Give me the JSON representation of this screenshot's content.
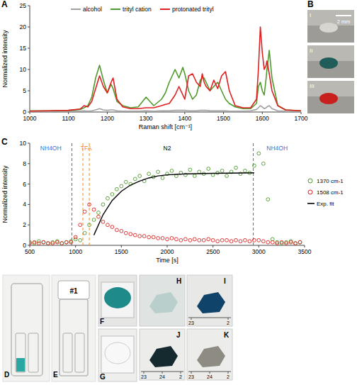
{
  "chart_data": [
    {
      "panel_label": "A",
      "type": "line",
      "x_label": "Raman shift [cm⁻¹]",
      "y_label": "Normalized intensity",
      "x": [
        1000,
        1050,
        1100,
        1130,
        1140,
        1150,
        1160,
        1170,
        1180,
        1190,
        1200,
        1210,
        1215,
        1225,
        1240,
        1260,
        1280,
        1300,
        1320,
        1340,
        1350,
        1360,
        1375,
        1385,
        1395,
        1400,
        1410,
        1420,
        1430,
        1440,
        1445,
        1450,
        1455,
        1465,
        1475,
        1485,
        1495,
        1505,
        1515,
        1530,
        1550,
        1570,
        1585,
        1590,
        1595,
        1600,
        1605,
        1610,
        1612,
        1618,
        1625,
        1640,
        1660,
        1700
      ],
      "series": [
        {
          "name": "alcohol",
          "color": "#a0a0a0",
          "values": [
            0.1,
            0.1,
            0.2,
            0.2,
            0.3,
            0.2,
            0.3,
            0.5,
            0.8,
            0.5,
            0.4,
            0.5,
            0.5,
            0.3,
            0.2,
            0.2,
            0.2,
            0.3,
            0.2,
            0.3,
            0.3,
            0.3,
            0.4,
            0.4,
            0.4,
            0.4,
            0.3,
            0.3,
            0.3,
            0.4,
            0.4,
            0.4,
            0.4,
            0.3,
            0.3,
            0.3,
            0.3,
            0.3,
            0.2,
            0.2,
            0.2,
            0.3,
            0.6,
            1.0,
            1.5,
            1.2,
            0.8,
            1.0,
            1.2,
            1.5,
            0.8,
            0.3,
            0.2,
            0.1
          ]
        },
        {
          "name": "trityl cation",
          "color": "#4f9a2c",
          "values": [
            0.3,
            0.3,
            0.4,
            0.6,
            1.0,
            1.5,
            3.5,
            8,
            11,
            7.5,
            4.5,
            6.5,
            5.5,
            2.5,
            1.5,
            1.0,
            1.2,
            3.5,
            1.5,
            3,
            4.5,
            7,
            10,
            8,
            10.5,
            9,
            5,
            3,
            4,
            7.5,
            8,
            8,
            7,
            5,
            6,
            7,
            5,
            3,
            2,
            1.2,
            0.8,
            0.8,
            2,
            6,
            7,
            5,
            4,
            8,
            10,
            14.5,
            8,
            1.5,
            0.5,
            0.3
          ]
        },
        {
          "name": "protonated trityl",
          "color": "#e02020",
          "values": [
            0.2,
            0.3,
            0.4,
            0.7,
            1.5,
            1.2,
            2.5,
            5.5,
            8.5,
            6,
            4.5,
            7,
            8,
            3,
            1.2,
            0.8,
            0.8,
            1.0,
            1.0,
            1.5,
            1.8,
            2,
            4,
            6,
            4,
            3,
            8.5,
            9,
            7,
            6,
            9,
            7,
            6,
            5,
            7.5,
            5.5,
            8.5,
            9.5,
            5,
            1.5,
            1.0,
            1.0,
            3,
            10,
            20,
            14,
            10,
            11,
            12,
            9,
            5,
            1.5,
            0.5,
            0.3
          ]
        }
      ],
      "xlim": [
        1000,
        1700
      ],
      "ylim": [
        0,
        25
      ],
      "xticks": [
        1000,
        1100,
        1200,
        1300,
        1400,
        1500,
        1600,
        1700
      ],
      "yticks": [
        0,
        5,
        10,
        15,
        20,
        25
      ],
      "legend": "top",
      "grid": false
    },
    {
      "panel_label": "C",
      "type": "scatter",
      "x_label": "Time [s]",
      "y_label": "Normalized intensity",
      "series": [
        {
          "name": "1370 cm-1",
          "color": "#4f9a2c",
          "marker": "circle",
          "x": [
            500,
            550,
            600,
            650,
            700,
            750,
            800,
            850,
            900,
            950,
            1000,
            1050,
            1100,
            1150,
            1200,
            1250,
            1300,
            1350,
            1400,
            1450,
            1500,
            1550,
            1600,
            1650,
            1700,
            1750,
            1800,
            1850,
            1900,
            1950,
            2000,
            2050,
            2100,
            2150,
            2200,
            2250,
            2300,
            2350,
            2400,
            2450,
            2500,
            2550,
            2600,
            2650,
            2700,
            2750,
            2800,
            2850,
            2900,
            2950,
            3000,
            3050,
            3100,
            3150,
            3200,
            3250,
            3300,
            3350,
            3400,
            3450
          ],
          "values": [
            0.3,
            0.2,
            0.4,
            0.3,
            0.2,
            0.3,
            0.4,
            0.2,
            0.3,
            0.4,
            0.6,
            0.5,
            1.2,
            2.0,
            2.5,
            3.2,
            4.0,
            4.6,
            5.0,
            5.5,
            5.8,
            6.2,
            6.0,
            6.5,
            6.8,
            6.3,
            7.0,
            6.7,
            7.2,
            6.6,
            7.0,
            7.3,
            6.8,
            7.1,
            6.9,
            7.4,
            6.8,
            7.2,
            7.0,
            7.5,
            6.9,
            7.1,
            7.3,
            6.8,
            7.2,
            7.6,
            7.0,
            7.3,
            7.1,
            7.8,
            9.0,
            8.0,
            4.5,
            0.6,
            0.3,
            0.2,
            0.3,
            0.4,
            0.2,
            0.3
          ]
        },
        {
          "name": "1508 cm-1",
          "color": "#e02020",
          "marker": "circle",
          "x": [
            500,
            550,
            600,
            650,
            700,
            750,
            800,
            850,
            900,
            950,
            1000,
            1050,
            1100,
            1150,
            1200,
            1250,
            1300,
            1350,
            1400,
            1450,
            1500,
            1550,
            1600,
            1650,
            1700,
            1750,
            1800,
            1850,
            1900,
            1950,
            2000,
            2050,
            2100,
            2150,
            2200,
            2250,
            2300,
            2350,
            2400,
            2450,
            2500,
            2550,
            2600,
            2650,
            2700,
            2750,
            2800,
            2850,
            2900,
            2950,
            3000,
            3050,
            3100,
            3150,
            3200,
            3250,
            3300,
            3350,
            3400,
            3450
          ],
          "values": [
            0.2,
            0.3,
            0.2,
            0.3,
            0.2,
            0.2,
            0.3,
            0.2,
            0.3,
            0.3,
            0.8,
            2.0,
            3.3,
            4.0,
            3.5,
            2.8,
            2.3,
            2.0,
            1.8,
            1.5,
            1.4,
            1.2,
            1.1,
            1.0,
            0.9,
            0.9,
            0.8,
            0.8,
            0.7,
            0.7,
            0.6,
            0.7,
            0.6,
            0.5,
            0.6,
            0.5,
            0.6,
            0.5,
            0.5,
            0.6,
            0.5,
            0.4,
            0.5,
            0.5,
            0.4,
            0.5,
            0.4,
            0.5,
            0.4,
            0.5,
            0.5,
            0.4,
            0.3,
            0.3,
            0.2,
            0.3,
            0.2,
            0.3,
            0.2,
            0.3
          ]
        },
        {
          "name": "Exp. fit",
          "type": "line",
          "color": "#000000",
          "line_style": "solid",
          "x": [
            1200,
            1300,
            1400,
            1500,
            1600,
            1700,
            1800,
            1900,
            2000,
            2200,
            2500,
            2950
          ],
          "values": [
            1.0,
            3.0,
            4.4,
            5.3,
            5.9,
            6.3,
            6.6,
            6.8,
            6.9,
            7.0,
            7.05,
            7.1
          ]
        }
      ],
      "xlim": [
        500,
        3500
      ],
      "ylim": [
        0,
        10
      ],
      "xticks": [
        500,
        1000,
        1500,
        2000,
        2500,
        3000,
        3500
      ],
      "yticks": [
        0,
        2,
        4,
        6,
        8,
        10
      ],
      "legend": "right",
      "grid": false,
      "events": [
        {
          "x": 960,
          "color": "#3b6fd4"
        },
        {
          "x": 1080,
          "color": "#f08a20"
        },
        {
          "x": 1150,
          "color": "#f08a20"
        },
        {
          "x": 2940,
          "color": "#3b6fd4"
        }
      ],
      "annotations": [
        {
          "text": "NH4OH",
          "x": 730,
          "color": "#3b6fd4"
        },
        {
          "text": "TFA",
          "x": 1115,
          "color": "#f08a20"
        },
        {
          "text": "N2",
          "x": 2000,
          "color": "#000000"
        },
        {
          "text": "NH4OH",
          "x": 3200,
          "color": "#3b6fd4"
        }
      ]
    }
  ],
  "photos": {
    "B": {
      "panel_label": "B",
      "scale_bar": "2 mm",
      "frames": [
        "I",
        "II",
        "III"
      ]
    },
    "D": {
      "panel_label": "D"
    },
    "E": {
      "panel_label": "E",
      "vial_label": "#1"
    },
    "F": {
      "panel_label": "F"
    },
    "G": {
      "panel_label": "G"
    },
    "H": {
      "panel_label": "H"
    },
    "I": {
      "panel_label": "I",
      "ruler": [
        "23",
        "2"
      ]
    },
    "J": {
      "panel_label": "J",
      "ruler": [
        "23",
        "24",
        "2"
      ]
    },
    "K": {
      "panel_label": "K",
      "ruler": [
        "23",
        "24",
        "2"
      ]
    }
  }
}
